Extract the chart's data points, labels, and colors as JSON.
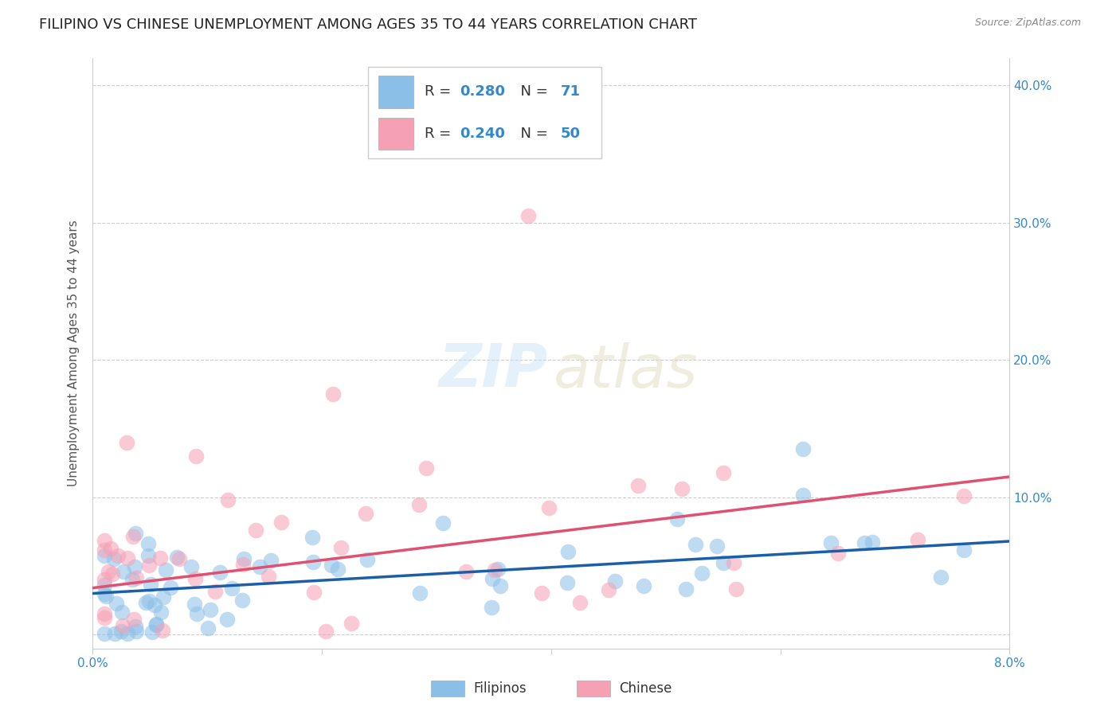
{
  "title": "FILIPINO VS CHINESE UNEMPLOYMENT AMONG AGES 35 TO 44 YEARS CORRELATION CHART",
  "source": "Source: ZipAtlas.com",
  "ylabel": "Unemployment Among Ages 35 to 44 years",
  "xlim": [
    0.0,
    0.08
  ],
  "ylim": [
    -0.01,
    0.42
  ],
  "xticks": [
    0.0,
    0.02,
    0.04,
    0.06,
    0.08
  ],
  "xtick_labels": [
    "0.0%",
    "",
    "",
    "",
    "8.0%"
  ],
  "yticks_right": [
    0.0,
    0.1,
    0.2,
    0.3,
    0.4
  ],
  "ytick_labels_right": [
    "",
    "10.0%",
    "20.0%",
    "30.0%",
    "40.0%"
  ],
  "filipino_color": "#8bbfe8",
  "chinese_color": "#f5a0b5",
  "filipino_line_color": "#1a5fa8",
  "chinese_line_color": "#e05070",
  "background_color": "#ffffff",
  "legend_filipino_R": "0.280",
  "legend_filipino_N": "71",
  "legend_chinese_R": "0.240",
  "legend_chinese_N": "50",
  "grid_color": "#cccccc",
  "title_fontsize": 13,
  "axis_label_fontsize": 11,
  "tick_fontsize": 11,
  "legend_fontsize": 13,
  "fil_line_x0": 0.0,
  "fil_line_y0": 0.03,
  "fil_line_x1": 0.08,
  "fil_line_y1": 0.068,
  "chi_line_x0": 0.0,
  "chi_line_y0": 0.034,
  "chi_line_x1": 0.08,
  "chi_line_y1": 0.115
}
